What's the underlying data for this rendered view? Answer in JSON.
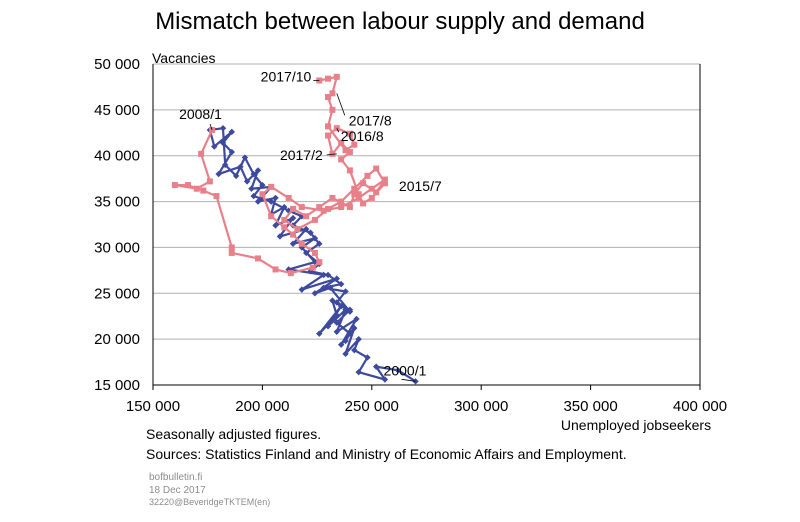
{
  "chart_data": {
    "type": "line",
    "title": "Mismatch between labour supply and demand",
    "xlabel": "Unemployed jobseekers",
    "ylabel": "Vacancies",
    "xlim": [
      150000,
      400000
    ],
    "ylim": [
      15000,
      50000
    ],
    "x_ticks": [
      150000,
      200000,
      250000,
      300000,
      350000,
      400000
    ],
    "y_ticks": [
      15000,
      20000,
      25000,
      30000,
      35000,
      40000,
      45000,
      50000
    ],
    "x_tick_labels": [
      "150 000",
      "200 000",
      "250 000",
      "300 000",
      "350 000",
      "400 000"
    ],
    "y_tick_labels": [
      "15 000",
      "20 000",
      "25 000",
      "30 000",
      "35 000",
      "40 000",
      "45 000",
      "50 000"
    ],
    "grid": "horizontal",
    "series": [
      {
        "color": "#3d4a9e",
        "marker": "diamond",
        "points": [
          [
            270000,
            15400
          ],
          [
            262000,
            16600
          ],
          [
            252000,
            17000
          ],
          [
            256000,
            15600
          ],
          [
            244000,
            16400
          ],
          [
            248000,
            18000
          ],
          [
            242000,
            18800
          ],
          [
            244000,
            20000
          ],
          [
            238000,
            18400
          ],
          [
            242000,
            21200
          ],
          [
            236000,
            19400
          ],
          [
            243000,
            22200
          ],
          [
            234000,
            20800
          ],
          [
            238000,
            23200
          ],
          [
            230000,
            21400
          ],
          [
            236000,
            23600
          ],
          [
            226000,
            20600
          ],
          [
            234000,
            22600
          ],
          [
            232000,
            24200
          ],
          [
            240000,
            23000
          ],
          [
            231000,
            25600
          ],
          [
            224000,
            25000
          ],
          [
            234000,
            26600
          ],
          [
            218000,
            25400
          ],
          [
            228000,
            27000
          ],
          [
            212000,
            27600
          ],
          [
            224000,
            28400
          ],
          [
            218000,
            30000
          ],
          [
            224000,
            31000
          ],
          [
            214000,
            30400
          ],
          [
            220000,
            32000
          ],
          [
            208000,
            31200
          ],
          [
            214000,
            33200
          ],
          [
            206000,
            32400
          ],
          [
            210000,
            34400
          ],
          [
            204000,
            33600
          ],
          [
            206000,
            35400
          ],
          [
            198000,
            35000
          ],
          [
            204000,
            36600
          ],
          [
            195000,
            36400
          ],
          [
            198000,
            38400
          ],
          [
            193000,
            37200
          ],
          [
            190000,
            38800
          ],
          [
            180000,
            38000
          ],
          [
            186000,
            40400
          ],
          [
            182000,
            41400
          ],
          [
            186000,
            42600
          ],
          [
            178000,
            41000
          ],
          [
            176000,
            42800
          ],
          [
            182000,
            43000
          ],
          [
            183000,
            39000
          ],
          [
            188000,
            37800
          ],
          [
            192000,
            39800
          ],
          [
            196000,
            38000
          ],
          [
            200000,
            36800
          ],
          [
            196000,
            35600
          ],
          [
            204000,
            35000
          ],
          [
            212000,
            34000
          ],
          [
            218000,
            33400
          ],
          [
            214000,
            32400
          ],
          [
            222000,
            31600
          ],
          [
            226000,
            30400
          ],
          [
            220000,
            29400
          ],
          [
            226000,
            28200
          ],
          [
            222000,
            27400
          ],
          [
            230000,
            27000
          ],
          [
            236000,
            26000
          ],
          [
            228000,
            25600
          ],
          [
            238000,
            25200
          ],
          [
            234000,
            24000
          ],
          [
            240000,
            23200
          ],
          [
            234000,
            21800
          ],
          [
            240000,
            20600
          ],
          [
            238000,
            19800
          ]
        ]
      },
      {
        "color": "#e8808a",
        "marker": "square",
        "points": [
          [
            177000,
            42800
          ],
          [
            172000,
            40200
          ],
          [
            176000,
            37200
          ],
          [
            170000,
            36400
          ],
          [
            160000,
            36800
          ],
          [
            166000,
            36800
          ],
          [
            173000,
            36200
          ],
          [
            179000,
            35600
          ],
          [
            186000,
            30000
          ],
          [
            186000,
            29400
          ],
          [
            198000,
            28800
          ],
          [
            206000,
            27600
          ],
          [
            213000,
            27200
          ],
          [
            223000,
            27800
          ],
          [
            226000,
            28400
          ],
          [
            224000,
            29400
          ],
          [
            218000,
            30400
          ],
          [
            214000,
            31400
          ],
          [
            210000,
            32200
          ],
          [
            204000,
            33400
          ],
          [
            200000,
            35800
          ],
          [
            204000,
            36600
          ],
          [
            212000,
            35400
          ],
          [
            218000,
            34400
          ],
          [
            228000,
            34000
          ],
          [
            236000,
            34400
          ],
          [
            244000,
            35400
          ],
          [
            250000,
            36400
          ],
          [
            256000,
            37400
          ],
          [
            252000,
            36000
          ],
          [
            246000,
            37000
          ],
          [
            242000,
            35800
          ],
          [
            240000,
            34400
          ],
          [
            232000,
            35400
          ],
          [
            226000,
            34400
          ],
          [
            220000,
            33400
          ],
          [
            214000,
            34200
          ],
          [
            210000,
            33000
          ],
          [
            216000,
            32000
          ],
          [
            224000,
            33000
          ],
          [
            230000,
            34200
          ],
          [
            236000,
            35000
          ],
          [
            242000,
            36400
          ],
          [
            248000,
            37800
          ],
          [
            252000,
            38600
          ],
          [
            256000,
            37000
          ],
          [
            250000,
            35400
          ],
          [
            246000,
            34800
          ],
          [
            244000,
            35800
          ],
          [
            240000,
            38400
          ],
          [
            236000,
            39600
          ],
          [
            240000,
            40400
          ],
          [
            236000,
            41400
          ],
          [
            232000,
            40200
          ],
          [
            230000,
            42200
          ],
          [
            234000,
            43000
          ],
          [
            240000,
            42400
          ],
          [
            242000,
            41200
          ],
          [
            238000,
            40600
          ],
          [
            230000,
            43200
          ],
          [
            232000,
            45000
          ],
          [
            230000,
            46400
          ],
          [
            232000,
            46800
          ],
          [
            234000,
            48600
          ],
          [
            230000,
            48400
          ],
          [
            226000,
            48200
          ]
        ]
      }
    ],
    "annotations": [
      {
        "label": "2017/10",
        "point": [
          226000,
          48200
        ]
      },
      {
        "label": "2017/8",
        "point": [
          234000,
          46800
        ]
      },
      {
        "label": "2016/8",
        "point": [
          234000,
          43000
        ]
      },
      {
        "label": "2017/2",
        "point": [
          234000,
          40200
        ]
      },
      {
        "label": "2015/7",
        "point": [
          256000,
          37000
        ]
      },
      {
        "label": "2008/1",
        "point": [
          177000,
          42800
        ]
      },
      {
        "label": "2000/1",
        "point": [
          270000,
          15400
        ]
      }
    ]
  },
  "notes": {
    "line1": "Seasonally adjusted figures.",
    "line2": "Sources: Statistics Finland and Ministry of Economic Affairs and Employment."
  },
  "footer": {
    "site": "bofbulletin.fi",
    "date": "18 Dec 2017",
    "code": "32220@BeveridgeTKTEM(en)"
  }
}
